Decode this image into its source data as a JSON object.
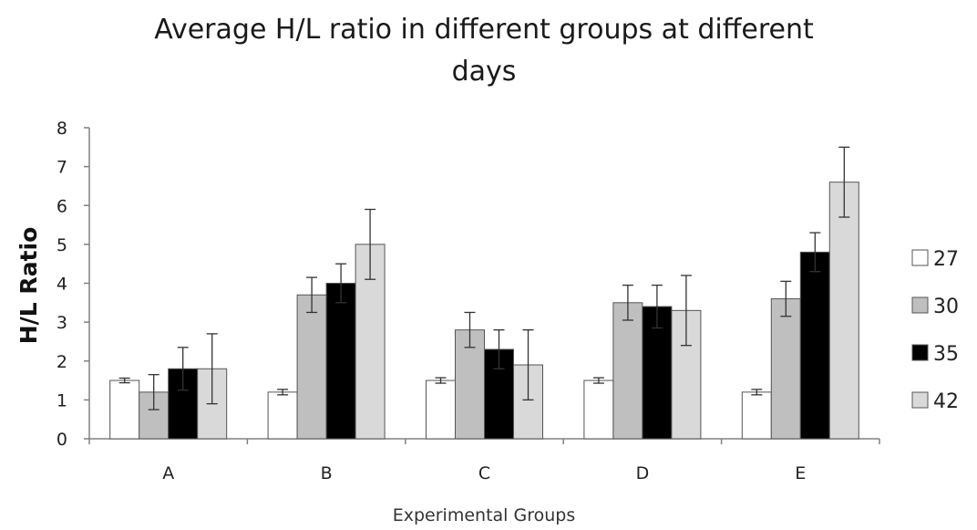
{
  "chart_data": {
    "type": "bar",
    "title": "Average H/L ratio in different groups at different days",
    "title_lines": [
      "Average H/L ratio in different groups at different",
      "days"
    ],
    "xlabel": "Experimental Groups",
    "ylabel": "H/L Ratio",
    "ylim": [
      0,
      8
    ],
    "yticks": [
      "0",
      "1",
      "2",
      "3",
      "4",
      "5",
      "6",
      "7",
      "8"
    ],
    "categories": [
      "A",
      "B",
      "C",
      "D",
      "E"
    ],
    "grid": false,
    "legend_position": "right",
    "series": [
      {
        "name": "27",
        "color": "#ffffff",
        "values": [
          1.5,
          1.2,
          1.5,
          1.5,
          1.2
        ],
        "errors": [
          0.06,
          0.07,
          0.07,
          0.07,
          0.07
        ]
      },
      {
        "name": "30",
        "color": "#bfbfbf",
        "values": [
          1.2,
          3.7,
          2.8,
          3.5,
          3.6
        ],
        "errors": [
          0.45,
          0.45,
          0.45,
          0.45,
          0.45
        ]
      },
      {
        "name": "35",
        "color": "#000000",
        "values": [
          1.8,
          4.0,
          2.3,
          3.4,
          4.8
        ],
        "errors": [
          0.55,
          0.5,
          0.5,
          0.55,
          0.5
        ]
      },
      {
        "name": "42",
        "color": "#d9d9d9",
        "values": [
          1.8,
          5.0,
          1.9,
          3.3,
          6.6
        ],
        "errors": [
          0.9,
          0.9,
          0.9,
          0.9,
          0.9
        ]
      }
    ]
  }
}
